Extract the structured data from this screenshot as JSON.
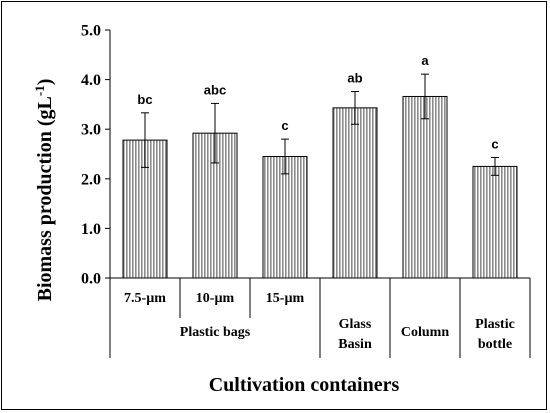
{
  "chart_data": {
    "type": "bar",
    "xlabel": "Cultivation containers",
    "ylabel": "Biomass production (gL",
    "ylabel_sup": "-1",
    "ylabel_close": ")",
    "ylim": [
      0,
      5.0
    ],
    "yticks": [
      "0.0",
      "1.0",
      "2.0",
      "3.0",
      "4.0",
      "5.0"
    ],
    "grid": false,
    "bar_color": "#c8c8c8",
    "bars": [
      {
        "category": "7.5-µm",
        "value": 2.78,
        "error": 0.55,
        "label": "bc"
      },
      {
        "category": "10-µm",
        "value": 2.92,
        "error": 0.6,
        "label": "abc"
      },
      {
        "category": "15-µm",
        "value": 2.45,
        "error": 0.35,
        "label": "c"
      },
      {
        "category": "Glass Basin",
        "value": 3.43,
        "error": 0.33,
        "label": "ab"
      },
      {
        "category": "Column",
        "value": 3.66,
        "error": 0.45,
        "label": "a"
      },
      {
        "category": "Plastic bottle",
        "value": 2.25,
        "error": 0.18,
        "label": "c"
      }
    ],
    "groups": [
      {
        "lines": [
          "Plastic bags"
        ],
        "bars": [
          0,
          1,
          2
        ]
      },
      {
        "lines": [
          "Glass",
          "Basin"
        ],
        "bars": [
          3
        ]
      },
      {
        "lines": [
          "Column"
        ],
        "bars": [
          4
        ]
      },
      {
        "lines": [
          "Plastic",
          "bottle"
        ],
        "bars": [
          5
        ]
      }
    ]
  }
}
